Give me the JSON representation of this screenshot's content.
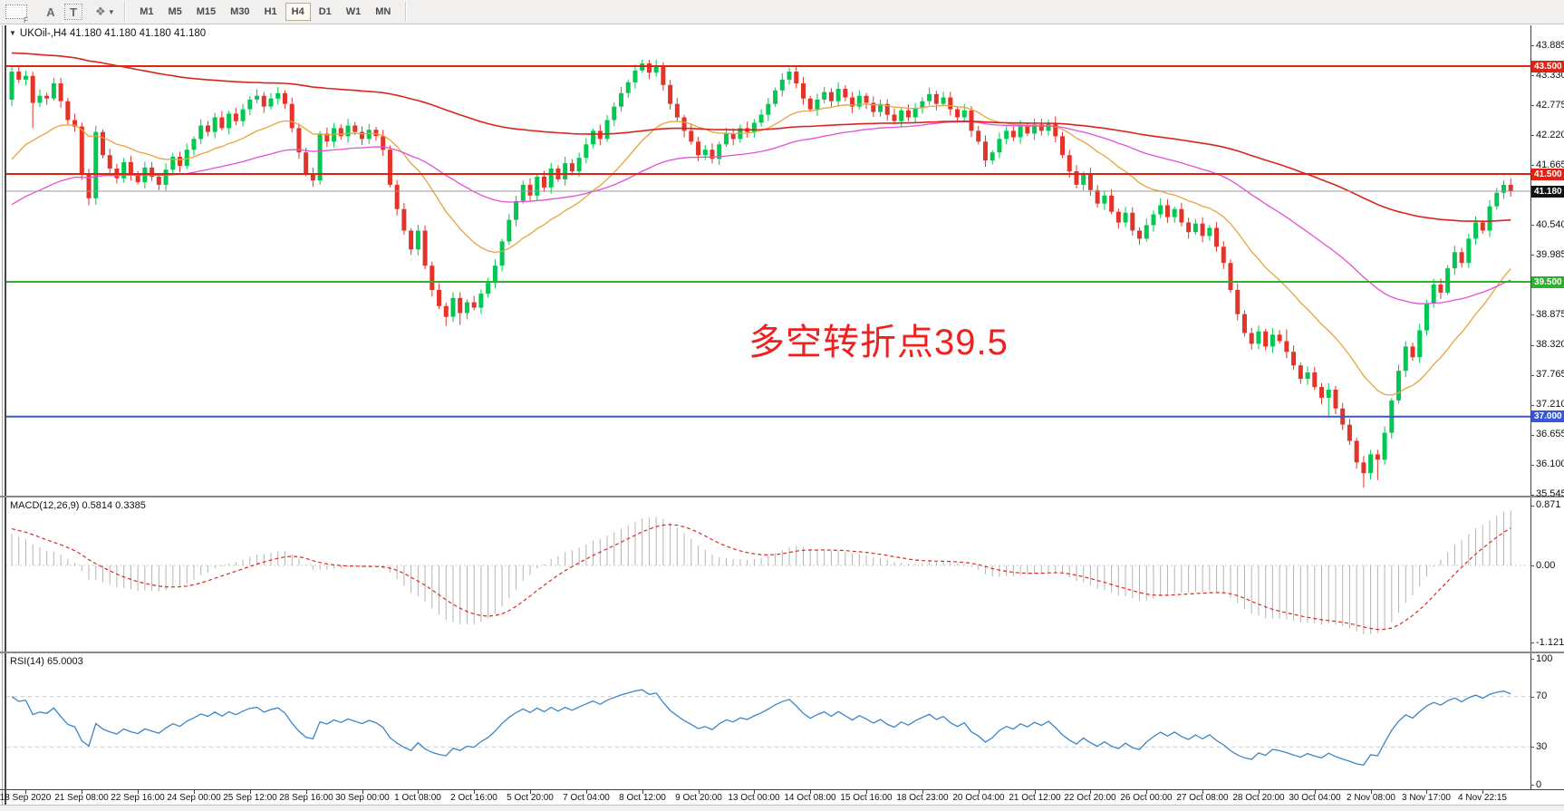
{
  "toolbar": {
    "grip_f": "F",
    "a_label": "A",
    "t_label": "T",
    "timeframes": [
      "M1",
      "M5",
      "M15",
      "M30",
      "H1",
      "H4",
      "D1",
      "W1",
      "MN"
    ],
    "active_timeframe": "H4"
  },
  "title": {
    "collapse_icon": "▼",
    "text": "UKOil-,H4  41.180 41.180 41.180 41.180"
  },
  "annotation": {
    "text": "多空转折点39.5",
    "color": "#ee2020"
  },
  "indicators": {
    "macd_label": "MACD(12,26,9) 0.5814 0.3385",
    "rsi_label": "RSI(14) 65.0003"
  },
  "axes": {
    "price_ticks": [
      "43.885",
      "43.330",
      "42.775",
      "42.220",
      "41.665",
      "41.110",
      "40.540",
      "39.985",
      "39.430",
      "38.875",
      "38.320",
      "37.765",
      "37.210",
      "36.655",
      "36.100",
      "35.545"
    ],
    "macd_ticks": [
      {
        "v": 0.871,
        "label": "0.871"
      },
      {
        "v": 0,
        "label": "0.00"
      },
      {
        "v": -1.1215,
        "label": "-1.1215"
      }
    ],
    "rsi_ticks": [
      {
        "v": 100,
        "label": "100"
      },
      {
        "v": 70,
        "label": "70"
      },
      {
        "v": 30,
        "label": "30"
      },
      {
        "v": 0,
        "label": "0"
      }
    ],
    "dates": [
      "18 Sep 2020",
      "21 Sep 08:00",
      "22 Sep 16:00",
      "24 Sep 00:00",
      "25 Sep 12:00",
      "28 Sep 16:00",
      "30 Sep 00:00",
      "1 Oct 08:00",
      "2 Oct 16:00",
      "5 Oct 20:00",
      "7 Oct 04:00",
      "8 Oct 12:00",
      "9 Oct 20:00",
      "13 Oct 00:00",
      "14 Oct 08:00",
      "15 Oct 16:00",
      "18 Oct 23:00",
      "20 Oct 04:00",
      "21 Oct 12:00",
      "22 Oct 20:00",
      "26 Oct 00:00",
      "27 Oct 08:00",
      "28 Oct 20:00",
      "30 Oct 04:00",
      "2 Nov 08:00",
      "3 Nov 17:00",
      "4 Nov 22:15"
    ]
  },
  "levels": [
    {
      "price": 43.5,
      "label": "43.500",
      "color": "#e02313"
    },
    {
      "price": 41.5,
      "label": "41.500",
      "color": "#e02313"
    },
    {
      "price": 39.5,
      "label": "39.500",
      "color": "#2fae32"
    },
    {
      "price": 37.0,
      "label": "37.000",
      "color": "#3a56d4"
    }
  ],
  "current_price": {
    "value": 41.18,
    "label": "41.180",
    "line_color": "#9a9a9a",
    "badge_bg": "#111111"
  },
  "colors": {
    "up": "#00c853",
    "down": "#e3342a",
    "macd_hist": "#b4b4b4",
    "macd_signal": "#d92b22",
    "rsi_line": "#3d85c6",
    "grid_dash": "#c8c8c8"
  },
  "chart_data": {
    "type": "candlestick",
    "symbol": "UKOil-",
    "timeframe": "H4",
    "first_open": 42.88,
    "closes": [
      43.4,
      43.25,
      43.32,
      42.82,
      42.95,
      42.9,
      43.18,
      42.85,
      42.5,
      42.38,
      41.5,
      41.05,
      42.28,
      41.85,
      41.6,
      41.42,
      41.72,
      41.5,
      41.35,
      41.62,
      41.45,
      41.3,
      41.58,
      41.82,
      41.65,
      41.95,
      42.15,
      42.4,
      42.28,
      42.55,
      42.35,
      42.62,
      42.48,
      42.7,
      42.88,
      42.95,
      42.75,
      42.9,
      43.0,
      42.8,
      42.35,
      41.9,
      41.5,
      41.38,
      42.25,
      42.1,
      42.35,
      42.2,
      42.4,
      42.28,
      42.15,
      42.32,
      42.2,
      41.95,
      41.3,
      40.85,
      40.45,
      40.1,
      40.45,
      39.8,
      39.35,
      39.05,
      38.85,
      39.2,
      38.92,
      39.12,
      39.02,
      39.28,
      39.48,
      39.8,
      40.25,
      40.65,
      41.0,
      41.3,
      41.1,
      41.45,
      41.25,
      41.6,
      41.4,
      41.7,
      41.55,
      41.8,
      42.05,
      42.3,
      42.15,
      42.5,
      42.75,
      43.0,
      43.2,
      43.42,
      43.55,
      43.38,
      43.5,
      43.15,
      42.8,
      42.55,
      42.3,
      42.1,
      41.85,
      41.95,
      41.78,
      42.05,
      42.25,
      42.15,
      42.35,
      42.28,
      42.45,
      42.6,
      42.8,
      43.05,
      43.25,
      43.4,
      43.18,
      42.9,
      42.7,
      42.88,
      43.02,
      42.85,
      43.08,
      42.92,
      42.75,
      42.95,
      42.82,
      42.65,
      42.8,
      42.6,
      42.48,
      42.68,
      42.55,
      42.72,
      42.85,
      42.98,
      42.8,
      42.92,
      42.7,
      42.55,
      42.68,
      42.3,
      42.1,
      41.75,
      41.9,
      42.15,
      42.3,
      42.18,
      42.38,
      42.25,
      42.42,
      42.3,
      42.45,
      42.2,
      41.85,
      41.55,
      41.3,
      41.5,
      41.2,
      40.95,
      41.1,
      40.8,
      40.6,
      40.78,
      40.45,
      40.3,
      40.55,
      40.75,
      40.92,
      40.7,
      40.85,
      40.6,
      40.42,
      40.58,
      40.35,
      40.5,
      40.15,
      39.85,
      39.35,
      38.9,
      38.55,
      38.35,
      38.58,
      38.3,
      38.52,
      38.4,
      38.2,
      37.95,
      37.7,
      37.82,
      37.55,
      37.35,
      37.5,
      37.15,
      36.85,
      36.55,
      36.15,
      35.95,
      36.3,
      36.2,
      36.7,
      37.3,
      37.85,
      38.3,
      38.1,
      38.6,
      39.1,
      39.45,
      39.3,
      39.75,
      40.05,
      39.85,
      40.3,
      40.6,
      40.45,
      40.9,
      41.15,
      41.3,
      41.18
    ],
    "wick_overrides": {
      "0": {
        "high": 43.52
      },
      "3": {
        "low": 42.35
      },
      "11": {
        "low": 40.92
      },
      "62": {
        "low": 38.68
      },
      "64": {
        "low": 38.7
      },
      "90": {
        "high": 43.62
      },
      "111": {
        "high": 43.47
      },
      "164": {
        "high": 41.05
      },
      "182": {
        "high": 38.62
      },
      "188": {
        "low": 37.02
      },
      "193": {
        "low": 35.68
      },
      "195": {
        "low": 35.82
      },
      "213": {
        "high": 41.38
      }
    },
    "moving_averages": [
      {
        "period": 20,
        "seed": 41.6,
        "color": "#e8a33b",
        "width": 1.3
      },
      {
        "period": 60,
        "seed": 40.85,
        "color": "#e44fd5",
        "width": 1.3
      },
      {
        "period": 160,
        "seed": 43.75,
        "color": "#d8251c",
        "width": 1.6
      }
    ],
    "macd": {
      "fast": 12,
      "slow": 26,
      "signal_period": 9,
      "slow_seed": 42.9,
      "signal_seed": 0.55,
      "value": 0.5814,
      "signal_value": 0.3385,
      "range": [
        -1.1215,
        0.871
      ]
    },
    "rsi": {
      "period": 14,
      "seed_gain": 0.14,
      "seed_loss": 0.06,
      "value": 65.0003,
      "dashed_levels": [
        70,
        30
      ],
      "range": [
        0,
        100
      ]
    }
  }
}
